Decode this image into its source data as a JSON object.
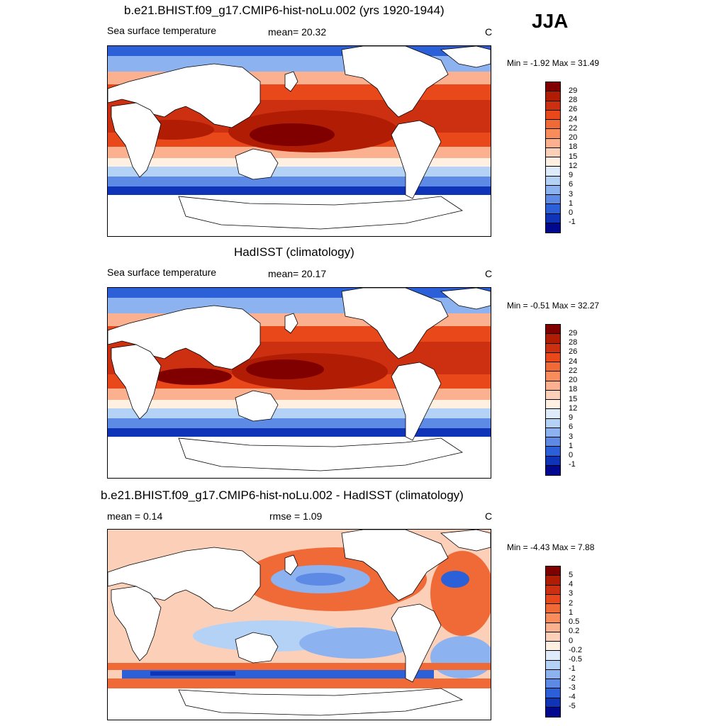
{
  "season": "JJA",
  "panels": [
    {
      "title": "b.e21.BHIST.f09_g17.CMIP6-hist-noLu.002 (yrs 1920-1944)",
      "left_label": "Sea surface temperature",
      "center_label": "mean=  20.32",
      "units": "C",
      "minmax": "Min =  -1.92 Max =  31.49",
      "colorbar_labels": [
        "29",
        "28",
        "26",
        "24",
        "22",
        "20",
        "18",
        "15",
        "12",
        "9",
        "6",
        "3",
        "1",
        "0",
        "-1"
      ],
      "colors": [
        "#800000",
        "#b01c04",
        "#cc3010",
        "#e8481a",
        "#f06a38",
        "#f88c5a",
        "#fbb090",
        "#fcd0b8",
        "#fff0e2",
        "#deebfa",
        "#b4d2f6",
        "#8cb2f0",
        "#5c8ae4",
        "#2c60d8",
        "#1034b8",
        "#000890"
      ]
    },
    {
      "title": "HadISST (climatology)",
      "left_label": "Sea surface temperature",
      "center_label": "mean=  20.17",
      "units": "C",
      "minmax": "Min =  -0.51 Max =  32.27",
      "colorbar_labels": [
        "29",
        "28",
        "26",
        "24",
        "22",
        "20",
        "18",
        "15",
        "12",
        "9",
        "6",
        "3",
        "1",
        "0",
        "-1"
      ],
      "colors": [
        "#800000",
        "#b01c04",
        "#cc3010",
        "#e8481a",
        "#f06a38",
        "#f88c5a",
        "#fbb090",
        "#fcd0b8",
        "#fff0e2",
        "#deebfa",
        "#b4d2f6",
        "#8cb2f0",
        "#5c8ae4",
        "#2c60d8",
        "#1034b8",
        "#000890"
      ]
    },
    {
      "title": "b.e21.BHIST.f09_g17.CMIP6-hist-noLu.002 - HadISST (climatology)",
      "left_label": "mean =   0.14",
      "center_label": "rmse =    1.09",
      "units": "C",
      "minmax": "Min =  -4.43 Max =   7.88",
      "colorbar_labels": [
        "5",
        "4",
        "3",
        "2",
        "1",
        "0.5",
        "0.2",
        "0",
        "-0.2",
        "-0.5",
        "-1",
        "-2",
        "-3",
        "-4",
        "-5"
      ],
      "colors": [
        "#800000",
        "#b01c04",
        "#cc3010",
        "#e8481a",
        "#f06a38",
        "#f88c5a",
        "#fbb090",
        "#fcd0b8",
        "#fff0e2",
        "#deebfa",
        "#b4d2f6",
        "#8cb2f0",
        "#5c8ae4",
        "#2c60d8",
        "#1034b8",
        "#000890"
      ]
    }
  ]
}
